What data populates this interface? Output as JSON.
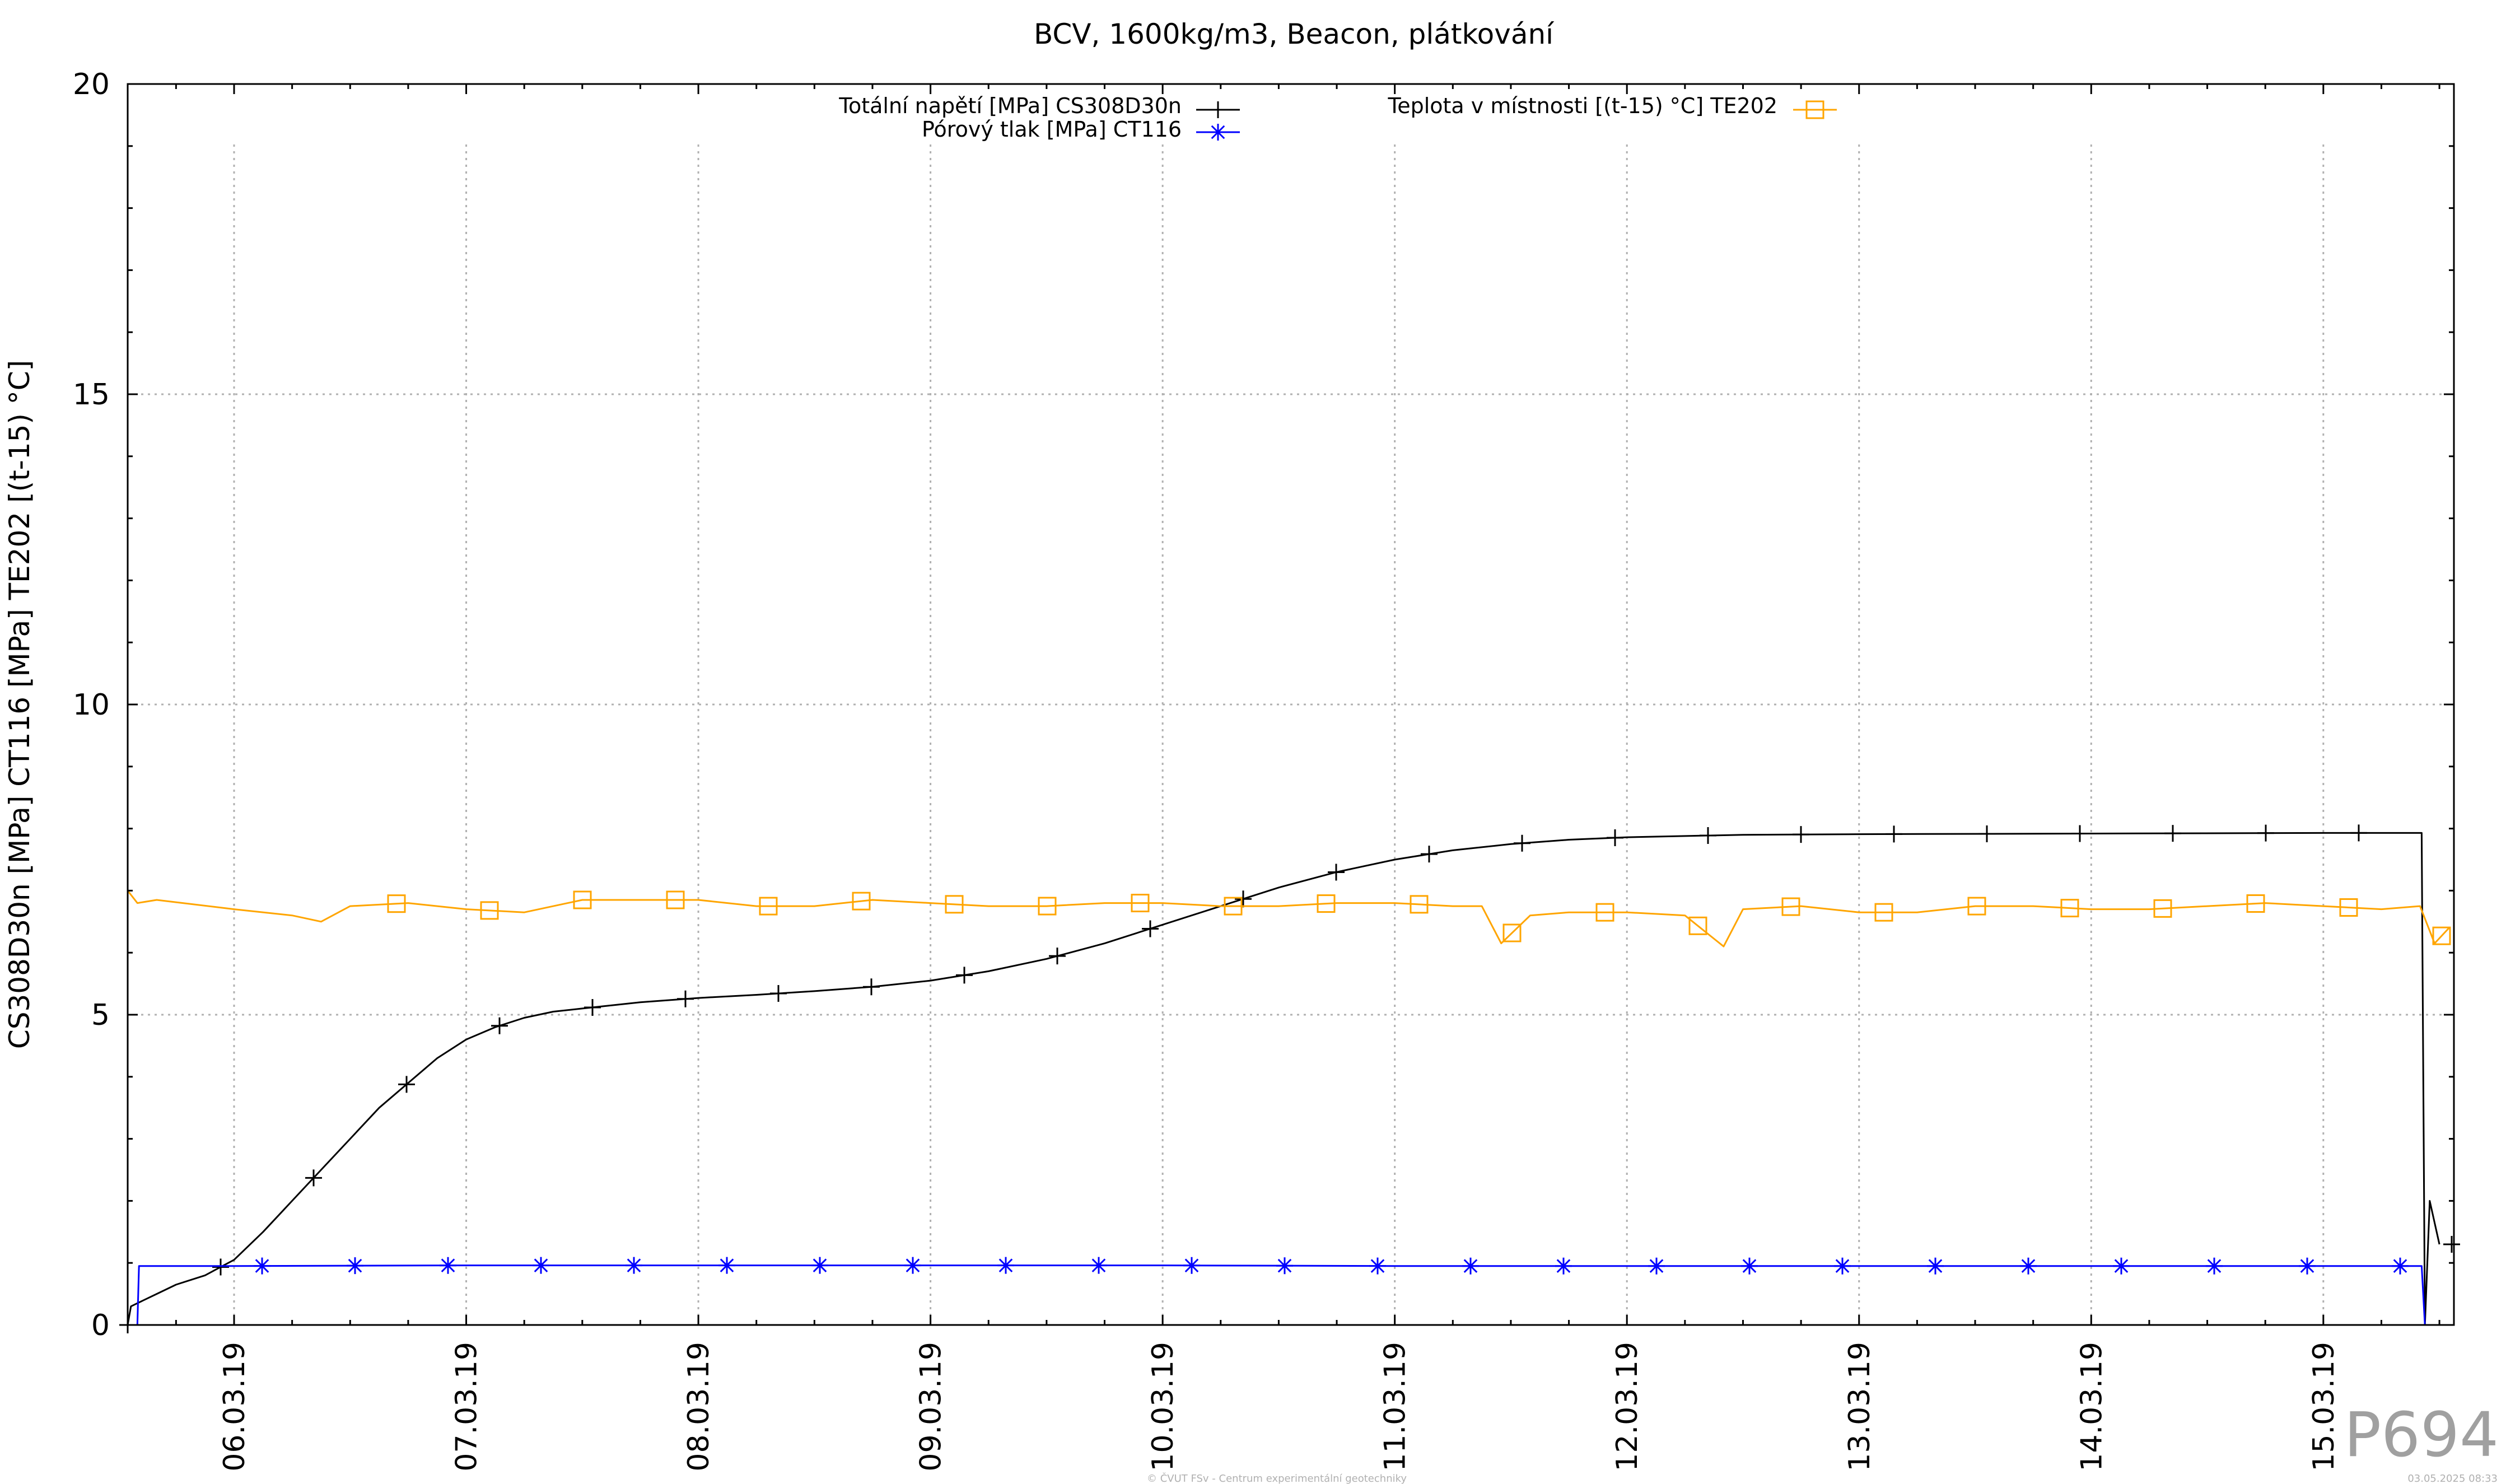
{
  "chart_data": {
    "type": "line",
    "title": "BCV, 1600kg/m3, Beacon, plátkování",
    "ylabel": "CS308D30n [MPa] CT116 [MPa] TE202 [(t-15) °C]",
    "xlabel": "",
    "xlim": [
      "2019-03-05 13:00",
      "2019-03-15 13:30"
    ],
    "ylim": [
      0,
      20
    ],
    "y_ticks": [
      "0",
      "5",
      "10",
      "15",
      "20"
    ],
    "x_ticks": [
      {
        "value": "2019-03-06",
        "label": "06.03.19"
      },
      {
        "value": "2019-03-07",
        "label": "07.03.19"
      },
      {
        "value": "2019-03-08",
        "label": "08.03.19"
      },
      {
        "value": "2019-03-09",
        "label": "09.03.19"
      },
      {
        "value": "2019-03-10",
        "label": "10.03.19"
      },
      {
        "value": "2019-03-11",
        "label": "11.03.19"
      },
      {
        "value": "2019-03-12",
        "label": "12.03.19"
      },
      {
        "value": "2019-03-13",
        "label": "13.03.19"
      },
      {
        "value": "2019-03-14",
        "label": "14.03.19"
      },
      {
        "value": "2019-03-15",
        "label": "15.03.19"
      }
    ],
    "grid": true,
    "legend_position": "top",
    "series": [
      {
        "name": "Totální napětí [MPa] CS308D30n",
        "color": "#000000",
        "marker": "plus",
        "x": [
          "2019-03-05 13:00",
          "2019-03-05 13:20",
          "2019-03-05 14:00",
          "2019-03-05 16:00",
          "2019-03-05 18:00",
          "2019-03-05 21:00",
          "2019-03-06 00:00",
          "2019-03-06 03:00",
          "2019-03-06 06:00",
          "2019-03-06 09:00",
          "2019-03-06 12:00",
          "2019-03-06 15:00",
          "2019-03-06 18:00",
          "2019-03-06 21:00",
          "2019-03-07 00:00",
          "2019-03-07 03:00",
          "2019-03-07 06:00",
          "2019-03-07 09:00",
          "2019-03-07 12:00",
          "2019-03-07 18:00",
          "2019-03-08 00:00",
          "2019-03-08 06:00",
          "2019-03-08 12:00",
          "2019-03-08 18:00",
          "2019-03-09 00:00",
          "2019-03-09 06:00",
          "2019-03-09 12:00",
          "2019-03-09 18:00",
          "2019-03-10 00:00",
          "2019-03-10 06:00",
          "2019-03-10 12:00",
          "2019-03-10 18:00",
          "2019-03-11 00:00",
          "2019-03-11 06:00",
          "2019-03-11 12:00",
          "2019-03-11 18:00",
          "2019-03-12 00:00",
          "2019-03-12 06:00",
          "2019-03-12 12:00",
          "2019-03-13 00:00",
          "2019-03-14 00:00",
          "2019-03-15 00:00",
          "2019-03-15 10:10",
          "2019-03-15 10:30",
          "2019-03-15 11:00",
          "2019-03-15 12:00"
        ],
        "y": [
          0,
          0.3,
          0.35,
          0.5,
          0.65,
          0.8,
          1.05,
          1.5,
          2.0,
          2.5,
          3.0,
          3.5,
          3.9,
          4.3,
          4.6,
          4.8,
          4.95,
          5.05,
          5.1,
          5.2,
          5.27,
          5.32,
          5.38,
          5.45,
          5.55,
          5.7,
          5.9,
          6.15,
          6.45,
          6.75,
          7.05,
          7.3,
          7.5,
          7.65,
          7.75,
          7.82,
          7.86,
          7.88,
          7.9,
          7.91,
          7.92,
          7.93,
          7.93,
          0,
          2.0,
          1.3
        ]
      },
      {
        "name": "Pórový tlak [MPa] CT116",
        "color": "#0000ff",
        "marker": "star",
        "x": [
          "2019-03-05 13:00",
          "2019-03-05 14:00",
          "2019-03-05 14:10",
          "2019-03-06 00:00",
          "2019-03-07 00:00",
          "2019-03-08 00:00",
          "2019-03-09 00:00",
          "2019-03-10 00:00",
          "2019-03-11 00:00",
          "2019-03-12 00:00",
          "2019-03-13 00:00",
          "2019-03-14 00:00",
          "2019-03-15 00:00",
          "2019-03-15 10:10",
          "2019-03-15 10:30",
          "2019-03-15 11:00",
          "2019-03-15 12:00"
        ],
        "y": [
          0,
          0,
          0.95,
          0.95,
          0.96,
          0.96,
          0.96,
          0.96,
          0.95,
          0.95,
          0.95,
          0.95,
          0.95,
          0.95,
          0,
          0,
          0
        ]
      },
      {
        "name": "Teplota v místnosti [(t-15) °C] TE202",
        "color": "#ffa500",
        "marker": "square",
        "x": [
          "2019-03-05 13:00",
          "2019-03-05 14:00",
          "2019-03-05 16:00",
          "2019-03-06 00:00",
          "2019-03-06 06:00",
          "2019-03-06 09:00",
          "2019-03-06 12:00",
          "2019-03-06 18:00",
          "2019-03-07 00:00",
          "2019-03-07 06:00",
          "2019-03-07 12:00",
          "2019-03-07 18:00",
          "2019-03-08 00:00",
          "2019-03-08 06:00",
          "2019-03-08 12:00",
          "2019-03-08 18:00",
          "2019-03-09 00:00",
          "2019-03-09 06:00",
          "2019-03-09 12:00",
          "2019-03-09 18:00",
          "2019-03-10 00:00",
          "2019-03-10 06:00",
          "2019-03-10 12:00",
          "2019-03-10 18:00",
          "2019-03-11 00:00",
          "2019-03-11 06:00",
          "2019-03-11 09:00",
          "2019-03-11 11:00",
          "2019-03-11 14:00",
          "2019-03-11 18:00",
          "2019-03-12 00:00",
          "2019-03-12 06:00",
          "2019-03-12 10:00",
          "2019-03-12 12:00",
          "2019-03-12 18:00",
          "2019-03-13 00:00",
          "2019-03-13 06:00",
          "2019-03-13 12:00",
          "2019-03-13 18:00",
          "2019-03-14 00:00",
          "2019-03-14 06:00",
          "2019-03-14 12:00",
          "2019-03-14 18:00",
          "2019-03-15 00:00",
          "2019-03-15 06:00",
          "2019-03-15 10:00",
          "2019-03-15 11:30",
          "2019-03-15 13:00"
        ],
        "y": [
          7.0,
          6.8,
          6.85,
          6.7,
          6.6,
          6.5,
          6.75,
          6.8,
          6.7,
          6.65,
          6.85,
          6.85,
          6.85,
          6.75,
          6.75,
          6.85,
          6.8,
          6.75,
          6.75,
          6.8,
          6.8,
          6.75,
          6.75,
          6.8,
          6.8,
          6.75,
          6.75,
          6.15,
          6.6,
          6.65,
          6.65,
          6.6,
          6.1,
          6.7,
          6.75,
          6.65,
          6.65,
          6.75,
          6.75,
          6.7,
          6.7,
          6.75,
          6.8,
          6.75,
          6.7,
          6.75,
          6.15,
          6.4
        ]
      }
    ]
  },
  "watermark": "P694",
  "footer_left": "© ČVUT FSv - Centrum experimentální geotechniky",
  "footer_right": "03.05.2025 08:33"
}
